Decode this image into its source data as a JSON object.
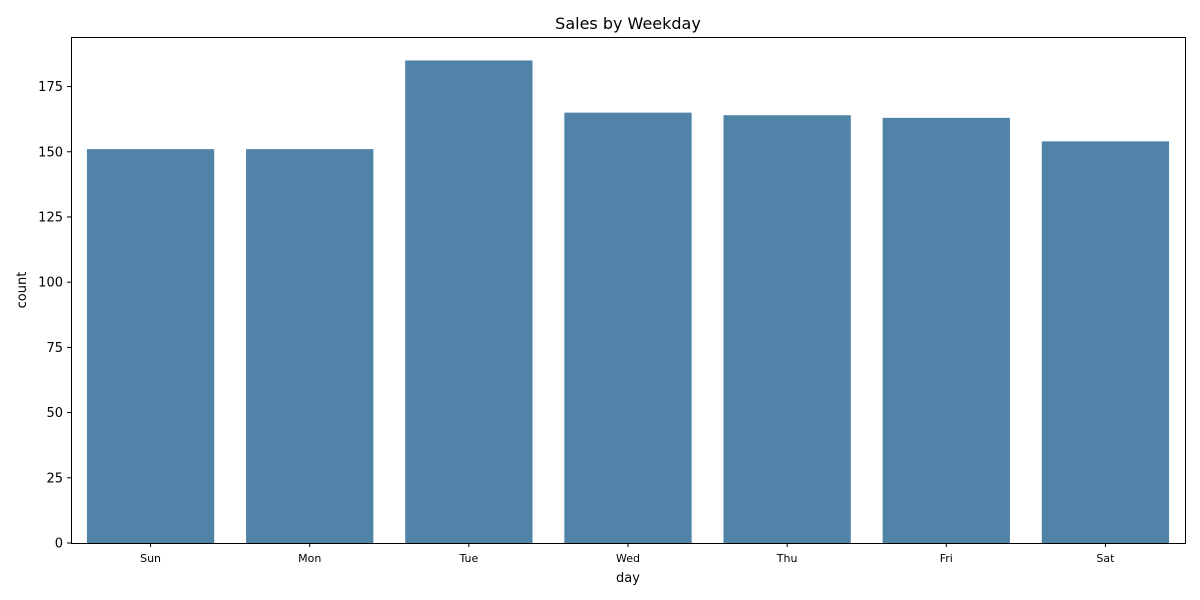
{
  "chart_data": {
    "type": "bar",
    "title": "Sales by Weekday",
    "xlabel": "day",
    "ylabel": "count",
    "categories": [
      "Sun",
      "Mon",
      "Tue",
      "Wed",
      "Thu",
      "Fri",
      "Sat"
    ],
    "values": [
      151,
      151,
      185,
      165,
      164,
      163,
      154
    ],
    "ylim": [
      0,
      194
    ],
    "yticks": [
      0,
      25,
      50,
      75,
      100,
      125,
      150,
      175
    ],
    "grid": false,
    "bar_color": "#5182a8"
  }
}
